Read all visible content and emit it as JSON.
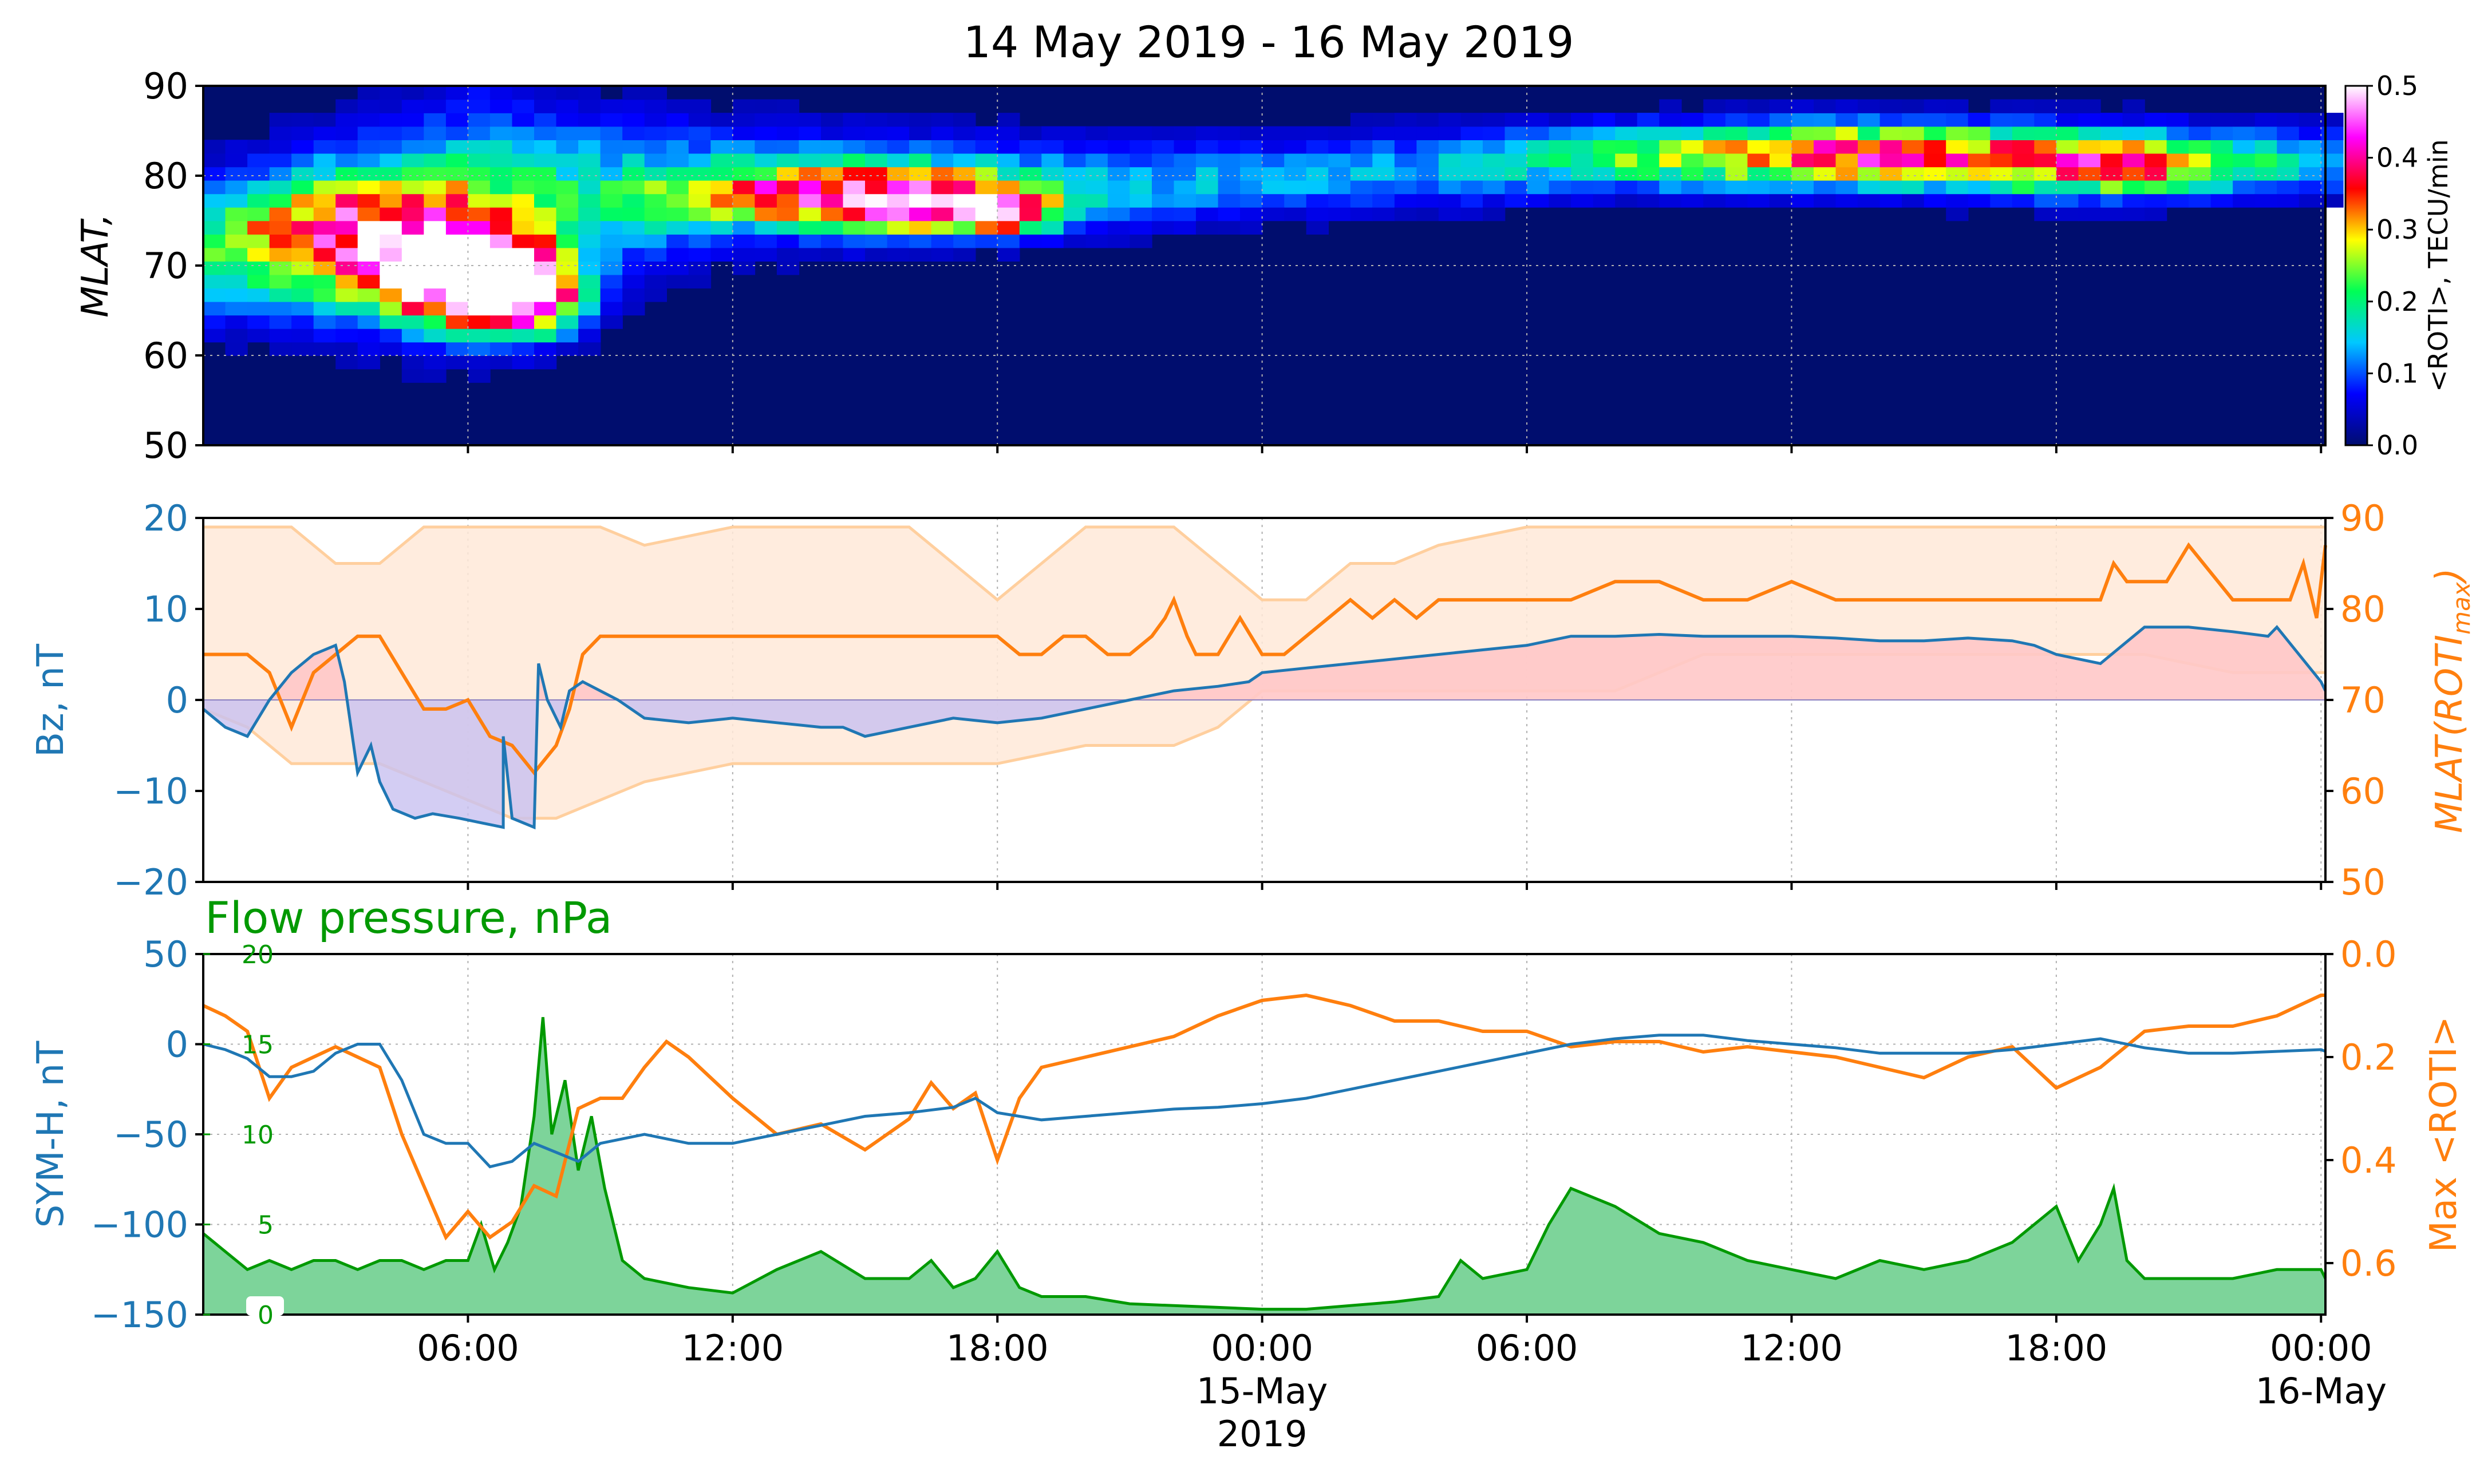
{
  "title": "14 May 2019 - 16 May 2019",
  "colors": {
    "blue": "#1f77b4",
    "orange": "#ff7f0e",
    "green": "#009900",
    "green_fill": "#7dd49a",
    "red_fill": "#ffc8c8",
    "purple_fill": "#c8c0f0",
    "band_fill": "#ffe9d8",
    "band_edge": "#ffcf9e",
    "map_bg": "#000d6e"
  },
  "x_axis": {
    "tick_labels": [
      {
        "value": 6,
        "label": "06:00"
      },
      {
        "value": 12,
        "label": "12:00"
      },
      {
        "value": 18,
        "label": "18:00"
      },
      {
        "value": 24,
        "label": "00:00",
        "sub": [
          "15-May",
          "2019"
        ]
      },
      {
        "value": 30,
        "label": "06:00"
      },
      {
        "value": 36,
        "label": "12:00"
      },
      {
        "value": 42,
        "label": "18:00"
      },
      {
        "value": 48,
        "label": "00:00",
        "sub": [
          "16-May"
        ]
      }
    ],
    "xlim_hours": [
      0,
      48.1
    ]
  },
  "chart_data": [
    {
      "type": "heatmap",
      "panel": "top",
      "ylabel": "MLAT,",
      "ylim": [
        50,
        90
      ],
      "yticks": [
        50,
        60,
        70,
        80,
        90
      ],
      "colorbar": {
        "label": "<ROTI>, TECU/min",
        "range": [
          0,
          0.5
        ],
        "ticks": [
          "0.0",
          "0.1",
          "0.2",
          "0.3",
          "0.4",
          "0.5"
        ],
        "stops": [
          "#000d6e",
          "#0000ff",
          "#00c8ff",
          "#00ff55",
          "#ffff00",
          "#ff0000",
          "#ff00ff",
          "#ffffff"
        ]
      },
      "hotspots": [
        {
          "t": 5.5,
          "mlat": 68,
          "dt": 1.8,
          "dm": 5,
          "roti": 0.45
        },
        {
          "t": 7.0,
          "mlat": 66,
          "dt": 1.2,
          "dm": 4,
          "roti": 0.42
        },
        {
          "t": 3.5,
          "mlat": 73,
          "dt": 3.0,
          "dm": 6,
          "roti": 0.22
        },
        {
          "t": 13.5,
          "mlat": 77,
          "dt": 3.0,
          "dm": 3,
          "roti": 0.25
        },
        {
          "t": 16.5,
          "mlat": 76,
          "dt": 2.0,
          "dm": 3,
          "roti": 0.28
        },
        {
          "t": 18.0,
          "mlat": 75,
          "dt": 1.0,
          "dm": 2,
          "roti": 0.26
        },
        {
          "t": 37.0,
          "mlat": 82,
          "dt": 5.0,
          "dm": 3,
          "roti": 0.22
        },
        {
          "t": 43.0,
          "mlat": 80,
          "dt": 3.0,
          "dm": 3,
          "roti": 0.2
        }
      ]
    },
    {
      "type": "line",
      "panel": "middle",
      "y_left": {
        "label": "Bz, nT",
        "ylim": [
          -20,
          20
        ],
        "ticks": [
          -20,
          -10,
          0,
          10,
          20
        ]
      },
      "y_right": {
        "label": "MLAT(ROTI",
        "label_sub": "max",
        "label_end": ")",
        "ylim": [
          50,
          90
        ],
        "ticks": [
          50,
          60,
          70,
          80,
          90
        ]
      },
      "series": [
        {
          "axis": "left",
          "x": [
            0,
            0.5,
            1,
            1.5,
            2,
            2.5,
            3,
            3.2,
            3.5,
            3.8,
            4,
            4.3,
            4.8,
            5.2,
            5.8,
            6.3,
            6.8,
            6.8,
            7,
            7.5,
            7.6,
            7.8,
            8.1,
            8.3,
            8.6,
            9,
            9.4,
            10,
            11,
            12,
            13,
            14,
            14.5,
            15,
            16,
            17,
            18,
            19,
            20,
            21,
            22,
            23,
            23.7,
            24,
            25,
            26,
            27,
            28,
            29,
            30,
            31,
            32,
            33,
            34,
            35,
            36,
            37,
            38,
            39,
            40,
            41,
            41.5,
            42,
            43,
            43.5,
            44,
            45,
            46,
            46.8,
            47,
            48,
            48.1
          ],
          "y": [
            -1,
            -3,
            -4,
            0,
            3,
            5,
            6,
            2,
            -8,
            -5,
            -9,
            -12,
            -13,
            -12.5,
            -13,
            -13.5,
            -14,
            -4,
            -13,
            -14,
            4,
            0,
            -3,
            1,
            2,
            1,
            0,
            -2,
            -2.5,
            -2,
            -2.5,
            -3,
            -3,
            -4,
            -3,
            -2,
            -2.5,
            -2,
            -1,
            0,
            1,
            1.5,
            2,
            3,
            3.5,
            4,
            4.5,
            5,
            5.5,
            6,
            7,
            7,
            7.2,
            7,
            7,
            7,
            6.8,
            6.5,
            6.5,
            6.8,
            6.5,
            6,
            5,
            4,
            6,
            8,
            8,
            7.5,
            7,
            8,
            2,
            1
          ]
        },
        {
          "axis": "right",
          "x": [
            0,
            0.3,
            1,
            1.5,
            2,
            2.5,
            3,
            3.5,
            4,
            4.5,
            5,
            5.5,
            6,
            6.5,
            7,
            7.5,
            8,
            8.3,
            8.6,
            9,
            10,
            11,
            12,
            13,
            14,
            15,
            16,
            17,
            18,
            18.5,
            19,
            19.5,
            20,
            20.5,
            21,
            21.5,
            21.8,
            22,
            22.3,
            22.5,
            23,
            23.5,
            24,
            24.5,
            25,
            25.5,
            26,
            26.5,
            27,
            27.5,
            28,
            29,
            30,
            31,
            32,
            33,
            34,
            35,
            36,
            37,
            38,
            39,
            40,
            41,
            42,
            43,
            43.3,
            43.6,
            44,
            44.5,
            45,
            46,
            47,
            47.3,
            47.6,
            47.9,
            48.1
          ],
          "y": [
            75,
            75,
            75,
            73,
            67,
            73,
            75,
            77,
            77,
            73,
            69,
            69,
            70,
            66,
            65,
            62,
            65,
            69,
            75,
            77,
            77,
            77,
            77,
            77,
            77,
            77,
            77,
            77,
            77,
            75,
            75,
            77,
            77,
            75,
            75,
            77,
            79,
            81,
            77,
            75,
            75,
            79,
            75,
            75,
            77,
            79,
            81,
            79,
            81,
            79,
            81,
            81,
            81,
            81,
            83,
            83,
            81,
            81,
            83,
            81,
            81,
            81,
            81,
            81,
            81,
            81,
            85,
            83,
            83,
            83,
            87,
            81,
            81,
            81,
            85,
            79,
            87
          ]
        }
      ],
      "band": {
        "x": [
          0,
          1,
          2,
          3,
          4,
          5,
          6,
          7,
          8,
          9,
          10,
          12,
          14,
          16,
          18,
          20,
          22,
          23,
          24,
          25,
          26,
          27,
          28,
          30,
          32,
          34,
          36,
          38,
          40,
          42,
          44,
          46,
          47,
          48,
          48.1
        ],
        "upper": [
          89,
          89,
          89,
          85,
          85,
          89,
          89,
          89,
          89,
          89,
          87,
          89,
          89,
          89,
          81,
          89,
          89,
          85,
          81,
          81,
          85,
          85,
          87,
          89,
          89,
          89,
          89,
          89,
          89,
          89,
          89,
          89,
          89,
          89,
          89
        ],
        "lower": [
          69,
          67,
          63,
          63,
          63,
          61,
          59,
          57,
          57,
          59,
          61,
          63,
          63,
          63,
          63,
          65,
          65,
          67,
          71,
          71,
          71,
          71,
          71,
          71,
          71,
          75,
          75,
          75,
          75,
          75,
          75,
          73,
          73,
          73,
          73
        ]
      }
    },
    {
      "type": "line",
      "panel": "bottom",
      "title": "Flow pressure, nPa",
      "y_left": {
        "label": "SYM-H, nT",
        "ylim": [
          -150,
          50
        ],
        "ticks": [
          "−150",
          "−100",
          "−50",
          "0",
          "50"
        ],
        "tick_values": [
          -150,
          -100,
          -50,
          0,
          50
        ]
      },
      "y_right": {
        "label": "Max <ROTI>",
        "ylim": [
          0.7,
          0.0
        ],
        "ticks": [
          "0.0",
          "0.2",
          "0.4",
          "0.6"
        ],
        "tick_values": [
          0,
          0.2,
          0.4,
          0.6
        ]
      },
      "pressure_axis": {
        "ylim": [
          0,
          20
        ],
        "ticks": [
          "0",
          "5",
          "10",
          "15",
          "20"
        ],
        "tick_values": [
          0,
          5,
          10,
          15,
          20
        ]
      },
      "series": [
        {
          "axis": "left",
          "x": [
            0,
            0.5,
            1,
            1.5,
            2,
            2.5,
            3,
            3.5,
            4,
            4.5,
            5,
            5.5,
            6,
            6.5,
            7,
            7.5,
            8,
            8.5,
            9,
            10,
            11,
            12,
            13,
            14,
            15,
            16,
            17,
            17.5,
            18,
            18.5,
            19,
            20,
            21,
            22,
            23,
            24,
            25,
            26,
            27,
            28,
            29,
            30,
            31,
            32,
            33,
            34,
            35,
            36,
            37,
            38,
            39,
            40,
            41,
            42,
            43,
            44,
            45,
            46,
            47,
            48,
            48.1
          ],
          "y": [
            0,
            -3,
            -8,
            -18,
            -18,
            -15,
            -5,
            0,
            0,
            -20,
            -50,
            -55,
            -55,
            -68,
            -65,
            -55,
            -60,
            -65,
            -55,
            -50,
            -55,
            -55,
            -50,
            -45,
            -40,
            -38,
            -35,
            -30,
            -38,
            -40,
            -42,
            -40,
            -38,
            -36,
            -35,
            -33,
            -30,
            -25,
            -20,
            -15,
            -10,
            -5,
            0,
            3,
            5,
            5,
            2,
            0,
            -2,
            -5,
            -5,
            -5,
            -3,
            0,
            3,
            -2,
            -5,
            -5,
            -4,
            -3,
            -4
          ]
        },
        {
          "axis": "right",
          "x": [
            0,
            0.5,
            1,
            1.5,
            2,
            2.5,
            3,
            3.5,
            4,
            4.5,
            5,
            5.5,
            6,
            6.5,
            7,
            7.5,
            8,
            8.5,
            9,
            9.5,
            10,
            10.5,
            11,
            12,
            13,
            14,
            15,
            16,
            16.5,
            17,
            17.5,
            18,
            18.5,
            19,
            20,
            21,
            22,
            23,
            24,
            25,
            26,
            27,
            28,
            29,
            30,
            31,
            32,
            33,
            34,
            35,
            36,
            37,
            38,
            39,
            40,
            41,
            42,
            43,
            44,
            45,
            46,
            47,
            48,
            48.1
          ],
          "y": [
            0.1,
            0.12,
            0.15,
            0.28,
            0.22,
            0.2,
            0.18,
            0.2,
            0.22,
            0.35,
            0.45,
            0.55,
            0.5,
            0.55,
            0.52,
            0.45,
            0.47,
            0.3,
            0.28,
            0.28,
            0.22,
            0.17,
            0.2,
            0.28,
            0.35,
            0.33,
            0.38,
            0.32,
            0.25,
            0.3,
            0.27,
            0.4,
            0.28,
            0.22,
            0.2,
            0.18,
            0.16,
            0.12,
            0.09,
            0.08,
            0.1,
            0.13,
            0.13,
            0.15,
            0.15,
            0.18,
            0.17,
            0.17,
            0.19,
            0.18,
            0.19,
            0.2,
            0.22,
            0.24,
            0.2,
            0.18,
            0.26,
            0.22,
            0.15,
            0.14,
            0.14,
            0.12,
            0.08,
            0.08
          ]
        },
        {
          "axis": "pressure",
          "x": [
            0,
            0.5,
            1,
            1.5,
            2,
            2.5,
            3,
            3.5,
            4,
            4.5,
            5,
            5.5,
            6,
            6.3,
            6.6,
            6.9,
            7.2,
            7.5,
            7.7,
            7.9,
            8.2,
            8.5,
            8.8,
            9.1,
            9.5,
            10,
            11,
            12,
            13,
            14,
            15,
            16,
            16.5,
            17,
            17.5,
            18,
            18.5,
            19,
            20,
            21,
            22,
            23,
            24,
            25,
            26,
            27,
            28,
            28.5,
            29,
            30,
            30.5,
            31,
            32,
            33,
            34,
            35,
            36,
            37,
            38,
            39,
            40,
            41,
            42,
            42.5,
            43,
            43.3,
            43.6,
            44,
            45,
            46,
            47,
            48,
            48.1
          ],
          "y": [
            4.5,
            3.5,
            2.5,
            3,
            2.5,
            3,
            3,
            2.5,
            3,
            3,
            2.5,
            3,
            3,
            5,
            2.5,
            4,
            6,
            11,
            16.5,
            10,
            13,
            8,
            11,
            7,
            3,
            2,
            1.5,
            1.2,
            2.5,
            3.5,
            2,
            2,
            3,
            1.5,
            2,
            3.5,
            1.5,
            1,
            1,
            0.6,
            0.5,
            0.4,
            0.3,
            0.3,
            0.5,
            0.7,
            1,
            3,
            2,
            2.5,
            5,
            7,
            6,
            4.5,
            4,
            3,
            2.5,
            2,
            3,
            2.5,
            3,
            4,
            6,
            3,
            5,
            7,
            3,
            2,
            2,
            2,
            2.5,
            2.5,
            2
          ]
        }
      ]
    }
  ]
}
